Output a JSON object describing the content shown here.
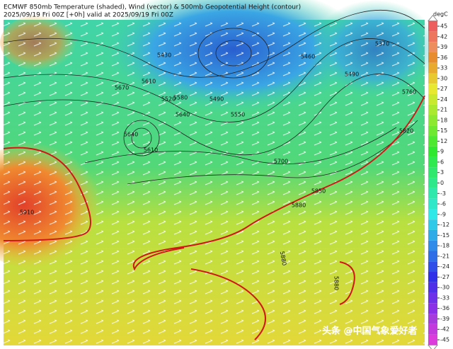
{
  "header": {
    "title": "ECMWF 850mb Temperature (shaded), Wind (vector) & 500mb Geopotential Height (contour)",
    "subtitle": "2025/09/19 Fri 00Z [+0h] valid at 2025/09/19 Fri 00Z"
  },
  "colorbar": {
    "unit": "degC",
    "ticks": [
      45,
      42,
      39,
      36,
      33,
      30,
      27,
      24,
      21,
      18,
      15,
      12,
      9,
      6,
      3,
      0,
      -3,
      -6,
      -9,
      -12,
      -15,
      -18,
      -21,
      -24,
      -27,
      -30,
      -33,
      -36,
      -39,
      -42,
      -45
    ]
  },
  "contour_labels": [
    "5370",
    "5460",
    "5490",
    "5430",
    "5670",
    "5610",
    "5520",
    "5580",
    "5640",
    "5640",
    "5610",
    "5490",
    "5550",
    "5700",
    "5850",
    "5880",
    "5910",
    "5760",
    "5820",
    "5880",
    "5880"
  ],
  "watermark": "头条 @中国气象爱好者"
}
